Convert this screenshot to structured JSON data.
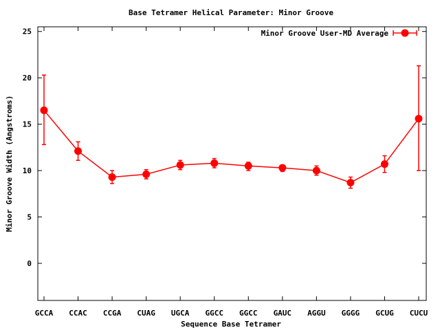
{
  "chart_data": {
    "type": "line",
    "title": "Base Tetramer Helical Parameter: Minor Groove",
    "xlabel": "Sequence Base Tetramer",
    "ylabel": "Minor Groove Width (Angstroms)",
    "categories": [
      "GCCA",
      "CCAC",
      "CCGA",
      "CUAG",
      "UGCA",
      "GGCC",
      "GGCC",
      "GAUC",
      "AGGU",
      "GGGG",
      "GCUG",
      "CUCU"
    ],
    "ylim": [
      -4,
      25.5
    ],
    "yticks": [
      0,
      5,
      10,
      15,
      20,
      25
    ],
    "grid": false,
    "legend": "top-right",
    "series": [
      {
        "name": "Minor Groove User-MD Average",
        "color": "#ff0000",
        "values": [
          16.5,
          12.1,
          9.3,
          9.6,
          10.6,
          10.8,
          10.5,
          10.3,
          10.0,
          8.7,
          10.7,
          15.6
        ],
        "err_low": [
          12.8,
          11.1,
          8.6,
          9.1,
          10.1,
          10.3,
          10.0,
          9.9,
          9.5,
          8.1,
          9.8,
          10.0
        ],
        "err_high": [
          20.3,
          13.1,
          10.0,
          10.1,
          11.1,
          11.3,
          10.9,
          10.6,
          10.5,
          9.3,
          11.6,
          21.3
        ]
      }
    ]
  }
}
